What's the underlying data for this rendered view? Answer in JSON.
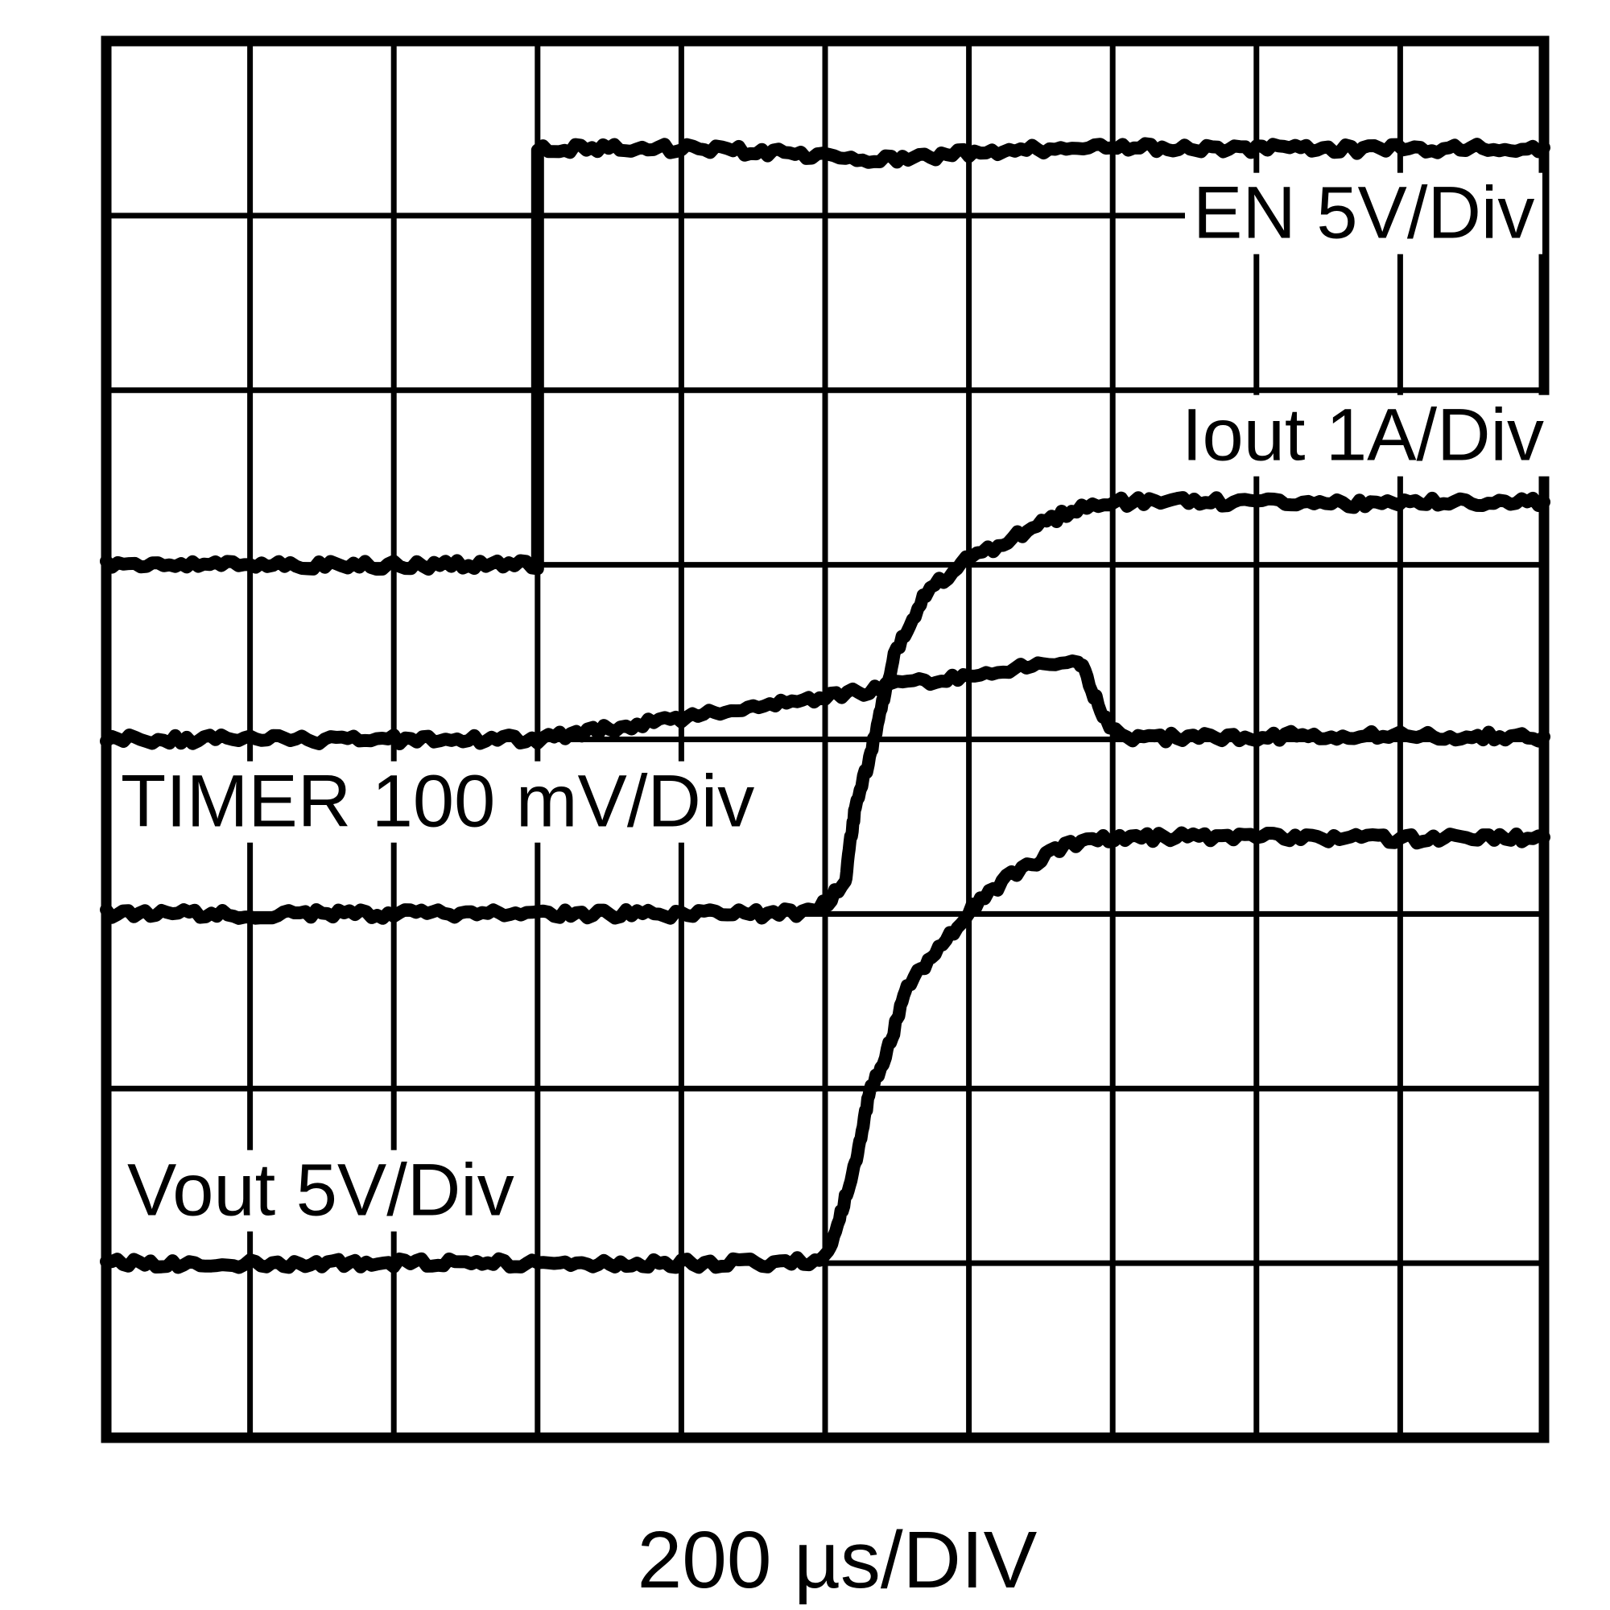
{
  "chart_data": {
    "type": "line",
    "subtype": "oscilloscope-capture",
    "xlabel": "200 µs/DIV",
    "timebase": "200 µs/DIV",
    "background": "#ffffff",
    "trace_color": "#000000",
    "grid": {
      "cols": 10,
      "rows": 8,
      "x0": 132,
      "y0": 51,
      "x1": 1918,
      "y1": 1786,
      "units_note": "trace points are in graticule divisions; x 0-10 from left, y 0-8 from top",
      "grid_on": true
    },
    "series": [
      {
        "name": "EN",
        "label": "EN 5V/Div",
        "scale_per_div": "5V",
        "points": [
          [
            0,
            3.0
          ],
          [
            0.6,
            3.0
          ],
          [
            1.2,
            3.0
          ],
          [
            1.8,
            3.0
          ],
          [
            2.4,
            3.0
          ],
          [
            3.0,
            3.0
          ],
          [
            3.0,
            0.62
          ],
          [
            3.3,
            0.61
          ],
          [
            4.0,
            0.615
          ],
          [
            4.6,
            0.635
          ],
          [
            5.1,
            0.67
          ],
          [
            5.5,
            0.675
          ],
          [
            6.0,
            0.64
          ],
          [
            6.6,
            0.615
          ],
          [
            7.5,
            0.61
          ],
          [
            8.5,
            0.62
          ],
          [
            9.3,
            0.615
          ],
          [
            10,
            0.61
          ]
        ]
      },
      {
        "name": "Iout",
        "label": "Iout 1A/Div",
        "scale_per_div": "1A",
        "points": [
          [
            0,
            5.0
          ],
          [
            1,
            5.0
          ],
          [
            2,
            5.0
          ],
          [
            3,
            5.0
          ],
          [
            4,
            5.0
          ],
          [
            4.6,
            5.0
          ],
          [
            4.92,
            4.99
          ],
          [
            5.02,
            4.93
          ],
          [
            5.14,
            4.81
          ],
          [
            5.21,
            4.38
          ],
          [
            5.3,
            4.14
          ],
          [
            5.48,
            3.52
          ],
          [
            5.7,
            3.16
          ],
          [
            5.98,
            2.98
          ],
          [
            6.17,
            2.9
          ],
          [
            6.54,
            2.75
          ],
          [
            6.82,
            2.66
          ],
          [
            7.1,
            2.64
          ],
          [
            7.8,
            2.64
          ],
          [
            8.6,
            2.65
          ],
          [
            9.3,
            2.64
          ],
          [
            10,
            2.64
          ]
        ]
      },
      {
        "name": "TIMER",
        "label": "TIMER 100 mV/Div",
        "scale_per_div": "100 mV",
        "points": [
          [
            0,
            4.0
          ],
          [
            0.8,
            4.0
          ],
          [
            1.6,
            4.0
          ],
          [
            2.4,
            4.0
          ],
          [
            3.0,
            4.0
          ],
          [
            3.5,
            3.94
          ],
          [
            4.0,
            3.88
          ],
          [
            4.5,
            3.82
          ],
          [
            5.0,
            3.76
          ],
          [
            5.5,
            3.69
          ],
          [
            6.0,
            3.63
          ],
          [
            6.4,
            3.58
          ],
          [
            6.76,
            3.536
          ],
          [
            6.9,
            3.8
          ],
          [
            6.98,
            3.95
          ],
          [
            7.1,
            3.99
          ],
          [
            7.6,
            3.99
          ],
          [
            8.2,
            3.98
          ],
          [
            9.0,
            3.98
          ],
          [
            10,
            3.985
          ]
        ]
      },
      {
        "name": "Vout",
        "label": "Vout 5V/Div",
        "scale_per_div": "5V",
        "points": [
          [
            0,
            7.0
          ],
          [
            1,
            7.0
          ],
          [
            2,
            7.0
          ],
          [
            3,
            7.0
          ],
          [
            4,
            7.0
          ],
          [
            4.6,
            7.0
          ],
          [
            4.93,
            6.99
          ],
          [
            5.02,
            6.93
          ],
          [
            5.1,
            6.75
          ],
          [
            5.21,
            6.42
          ],
          [
            5.32,
            5.99
          ],
          [
            5.42,
            5.82
          ],
          [
            5.57,
            5.42
          ],
          [
            5.79,
            5.2
          ],
          [
            6.05,
            4.94
          ],
          [
            6.26,
            4.8
          ],
          [
            6.44,
            4.71
          ],
          [
            6.63,
            4.62
          ],
          [
            6.82,
            4.57
          ],
          [
            7.2,
            4.56
          ],
          [
            8.0,
            4.56
          ],
          [
            9.0,
            4.57
          ],
          [
            10,
            4.56
          ]
        ]
      }
    ],
    "annotations": [
      "EN steps high at 3.0 divisions from left",
      "TIMER ramps from EN edge, peaks at 6.76 div then resets",
      "Iout soft-start rise ~5.0-7.0 div to ~2.4 A plateau",
      "Vout soft-start rise ~5.0-7.0 div to ~12 V plateau"
    ],
    "legend_position": "labels-on-plot"
  }
}
